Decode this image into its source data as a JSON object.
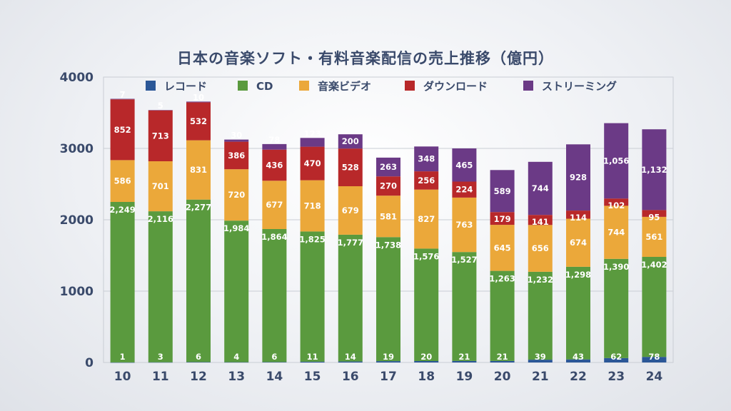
{
  "chart_data": {
    "type": "bar",
    "stacked": true,
    "title": "日本の音楽ソフト・有料音楽配信の売上推移（億円）",
    "categories": [
      "10",
      "11",
      "12",
      "13",
      "14",
      "15",
      "16",
      "17",
      "18",
      "19",
      "20",
      "21",
      "22",
      "23",
      "24"
    ],
    "ylim": [
      0,
      4000
    ],
    "yticks": [
      "0",
      "1000",
      "2000",
      "3000",
      "4000"
    ],
    "grid": true,
    "legend_position": "top",
    "series": [
      {
        "name": "レコード",
        "color": "#2b5797",
        "values": [
          1,
          3,
          6,
          4,
          6,
          11,
          14,
          19,
          20,
          21,
          21,
          39,
          43,
          62,
          78
        ],
        "labels": [
          "1",
          "3",
          "6",
          "4",
          "6",
          "11",
          "14",
          "19",
          "20",
          "21",
          "21",
          "39",
          "43",
          "62",
          "78"
        ]
      },
      {
        "name": "CD",
        "color": "#5a9a3e",
        "values": [
          2249,
          2116,
          2277,
          1984,
          1864,
          1825,
          1777,
          1738,
          1576,
          1527,
          1263,
          1232,
          1298,
          1390,
          1402
        ],
        "labels": [
          "2,249",
          "2,116",
          "2,277",
          "1,984",
          "1,864",
          "1,825",
          "1,777",
          "1,738",
          "1,576",
          "1,527",
          "1,263",
          "1,232",
          "1,298",
          "1,390",
          "1,402"
        ]
      },
      {
        "name": "音楽ビデオ",
        "color": "#eba83a",
        "values": [
          586,
          701,
          831,
          720,
          677,
          718,
          679,
          581,
          827,
          763,
          645,
          656,
          674,
          744,
          561
        ],
        "labels": [
          "586",
          "701",
          "831",
          "720",
          "677",
          "718",
          "679",
          "581",
          "827",
          "763",
          "645",
          "656",
          "674",
          "744",
          "561"
        ]
      },
      {
        "name": "ダウンロード",
        "color": "#b8282a",
        "values": [
          852,
          713,
          532,
          386,
          436,
          470,
          528,
          270,
          256,
          224,
          179,
          141,
          114,
          102,
          95
        ],
        "labels": [
          "852",
          "713",
          "532",
          "386",
          "436",
          "470",
          "528",
          "270",
          "256",
          "224",
          "179",
          "141",
          "114",
          "102",
          "95"
        ]
      },
      {
        "name": "ストリーミング",
        "color": "#6b3a86",
        "values": [
          7,
          5,
          10,
          30,
          78,
          123,
          200,
          263,
          348,
          465,
          589,
          744,
          928,
          1056,
          1132
        ],
        "labels": [
          "7",
          "5",
          "10",
          "30",
          "78",
          "123",
          "200",
          "263",
          "348",
          "465",
          "589",
          "744",
          "928",
          "1,056",
          "1,132"
        ]
      }
    ]
  }
}
